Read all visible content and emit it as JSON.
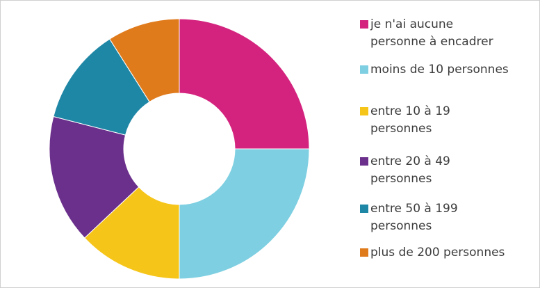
{
  "chart_data": {
    "type": "donut",
    "categories": [
      "je n'ai aucune\npersonne à encadrer",
      "moins de 10 personnes",
      "entre 10 à 19\npersonnes",
      "entre 20 à 49\npersonnes",
      "entre 50 à 199\npersonnes",
      "plus de 200 personnes"
    ],
    "values": [
      25,
      25,
      13,
      16,
      12,
      9
    ],
    "colors": [
      "#d4237e",
      "#7dcfe1",
      "#f6c51a",
      "#6b2f8c",
      "#1f87a6",
      "#e07b1c"
    ]
  }
}
